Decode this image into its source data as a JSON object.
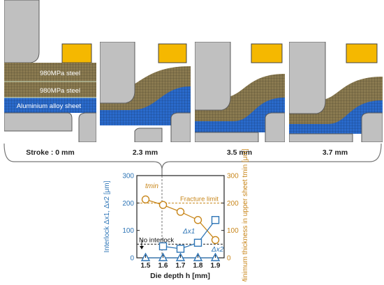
{
  "panels": [
    {
      "caption": "Stroke : 0 mm",
      "labels": [
        "980MPa steel",
        "980MPa steel",
        "Aluminium alloy sheet"
      ]
    },
    {
      "caption": "2.3 mm",
      "labels": []
    },
    {
      "caption": "3.5 mm",
      "labels": []
    },
    {
      "caption": "3.7 mm",
      "labels": []
    }
  ],
  "colors": {
    "steel": "#8a7a50",
    "aluminium": "#2a6acb",
    "tool": "#c0c0c0",
    "blank_holder": "#f5b800",
    "interlock_axis": "#2e75b6",
    "thickness_axis": "#c8861a"
  },
  "chart_data": {
    "type": "line",
    "xlabel": "Die depth h [mm]",
    "ylabel_left": "Interlock Δx1, Δx2 [μm]",
    "ylabel_right": "Minimum thickness in upper sheet tmin [μm]",
    "x": [
      1.5,
      1.6,
      1.7,
      1.8,
      1.9
    ],
    "x_ticks": [
      "1.5",
      "1.6",
      "1.7",
      "1.8",
      "1.9"
    ],
    "ylim_left": [
      0,
      300
    ],
    "ylim_right": [
      0,
      300
    ],
    "y_ticks": [
      "0",
      "100",
      "200",
      "300"
    ],
    "series": [
      {
        "name": "tmin",
        "axis": "right",
        "marker": "circle",
        "values": [
          213,
          193,
          168,
          138,
          65
        ]
      },
      {
        "name": "Δx1",
        "axis": "left",
        "marker": "square",
        "values": [
          null,
          42,
          33,
          55,
          138
        ]
      },
      {
        "name": "Δx2",
        "axis": "left",
        "marker": "triangle",
        "values": [
          0,
          0,
          0,
          0,
          0
        ]
      }
    ],
    "annotations": {
      "fracture_limit_label": "Fracture limit",
      "fracture_limit_value": 200,
      "no_interlock_label": "No interlock",
      "no_interlock_value": 50,
      "tmin_label": "tmin",
      "dx1_label": "Δx1",
      "dx2_label": "Δx2"
    }
  }
}
